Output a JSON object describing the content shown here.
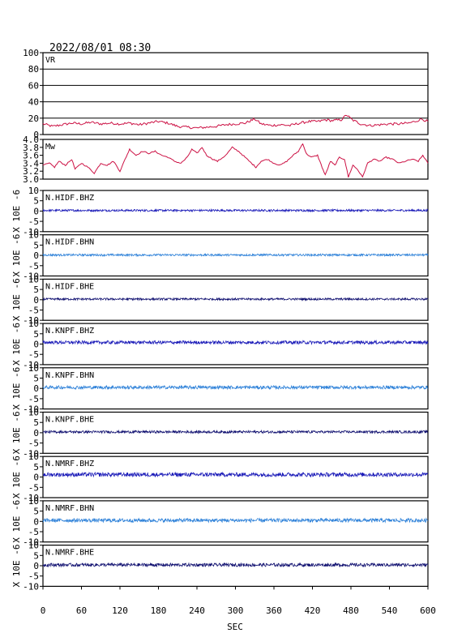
{
  "header": {
    "timestamp": "2022/08/01 08:30"
  },
  "colors": {
    "vr": "#cc1144",
    "mw": "#cc1144",
    "bhz": "#1a1ab8",
    "bhn": "#2a7fd8",
    "bhe": "#101070",
    "frame": "#000000"
  },
  "chart_data": {
    "type": "line",
    "xlabel": "SEC",
    "xlim": [
      0,
      600
    ],
    "xticks": [
      "0",
      "60",
      "120",
      "180",
      "240",
      "300",
      "360",
      "420",
      "480",
      "540",
      "600"
    ],
    "top_panels": [
      {
        "label": "VR",
        "ylim": [
          0,
          100
        ],
        "yticks": [
          "0",
          "20",
          "40",
          "60",
          "80",
          "100"
        ],
        "grid": true,
        "series": [
          {
            "x": 0,
            "y": 13
          },
          {
            "x": 15,
            "y": 10
          },
          {
            "x": 30,
            "y": 12
          },
          {
            "x": 45,
            "y": 14
          },
          {
            "x": 60,
            "y": 13
          },
          {
            "x": 75,
            "y": 15
          },
          {
            "x": 90,
            "y": 13
          },
          {
            "x": 105,
            "y": 14
          },
          {
            "x": 120,
            "y": 13
          },
          {
            "x": 135,
            "y": 14
          },
          {
            "x": 150,
            "y": 12
          },
          {
            "x": 165,
            "y": 14
          },
          {
            "x": 180,
            "y": 16
          },
          {
            "x": 195,
            "y": 14
          },
          {
            "x": 210,
            "y": 10
          },
          {
            "x": 225,
            "y": 9
          },
          {
            "x": 240,
            "y": 8
          },
          {
            "x": 255,
            "y": 9
          },
          {
            "x": 270,
            "y": 10
          },
          {
            "x": 285,
            "y": 12
          },
          {
            "x": 300,
            "y": 13
          },
          {
            "x": 315,
            "y": 14
          },
          {
            "x": 330,
            "y": 19
          },
          {
            "x": 340,
            "y": 13
          },
          {
            "x": 355,
            "y": 11
          },
          {
            "x": 370,
            "y": 12
          },
          {
            "x": 385,
            "y": 11
          },
          {
            "x": 400,
            "y": 14
          },
          {
            "x": 415,
            "y": 16
          },
          {
            "x": 430,
            "y": 16
          },
          {
            "x": 440,
            "y": 18
          },
          {
            "x": 450,
            "y": 17
          },
          {
            "x": 465,
            "y": 18
          },
          {
            "x": 473,
            "y": 24
          },
          {
            "x": 482,
            "y": 18
          },
          {
            "x": 495,
            "y": 13
          },
          {
            "x": 510,
            "y": 11
          },
          {
            "x": 525,
            "y": 12
          },
          {
            "x": 540,
            "y": 13
          },
          {
            "x": 555,
            "y": 13
          },
          {
            "x": 570,
            "y": 14
          },
          {
            "x": 580,
            "y": 16
          },
          {
            "x": 590,
            "y": 19
          },
          {
            "x": 600,
            "y": 16
          }
        ]
      },
      {
        "label": "Mw",
        "ylim": [
          3.0,
          4.0
        ],
        "yticks": [
          "3.0",
          "3.2",
          "3.4",
          "3.6",
          "3.8",
          "4.0"
        ],
        "grid": false,
        "series": [
          {
            "x": 0,
            "y": 3.35
          },
          {
            "x": 10,
            "y": 3.4
          },
          {
            "x": 18,
            "y": 3.3
          },
          {
            "x": 25,
            "y": 3.45
          },
          {
            "x": 35,
            "y": 3.35
          },
          {
            "x": 45,
            "y": 3.5
          },
          {
            "x": 50,
            "y": 3.25
          },
          {
            "x": 60,
            "y": 3.4
          },
          {
            "x": 70,
            "y": 3.3
          },
          {
            "x": 80,
            "y": 3.15
          },
          {
            "x": 90,
            "y": 3.4
          },
          {
            "x": 100,
            "y": 3.35
          },
          {
            "x": 110,
            "y": 3.45
          },
          {
            "x": 120,
            "y": 3.2
          },
          {
            "x": 128,
            "y": 3.5
          },
          {
            "x": 135,
            "y": 3.75
          },
          {
            "x": 145,
            "y": 3.6
          },
          {
            "x": 155,
            "y": 3.7
          },
          {
            "x": 165,
            "y": 3.65
          },
          {
            "x": 175,
            "y": 3.7
          },
          {
            "x": 185,
            "y": 3.6
          },
          {
            "x": 195,
            "y": 3.55
          },
          {
            "x": 205,
            "y": 3.45
          },
          {
            "x": 215,
            "y": 3.4
          },
          {
            "x": 225,
            "y": 3.55
          },
          {
            "x": 232,
            "y": 3.75
          },
          {
            "x": 240,
            "y": 3.65
          },
          {
            "x": 248,
            "y": 3.8
          },
          {
            "x": 255,
            "y": 3.6
          },
          {
            "x": 265,
            "y": 3.5
          },
          {
            "x": 272,
            "y": 3.45
          },
          {
            "x": 285,
            "y": 3.6
          },
          {
            "x": 295,
            "y": 3.8
          },
          {
            "x": 305,
            "y": 3.7
          },
          {
            "x": 315,
            "y": 3.55
          },
          {
            "x": 325,
            "y": 3.4
          },
          {
            "x": 332,
            "y": 3.3
          },
          {
            "x": 340,
            "y": 3.45
          },
          {
            "x": 350,
            "y": 3.5
          },
          {
            "x": 360,
            "y": 3.4
          },
          {
            "x": 370,
            "y": 3.35
          },
          {
            "x": 380,
            "y": 3.45
          },
          {
            "x": 390,
            "y": 3.6
          },
          {
            "x": 398,
            "y": 3.7
          },
          {
            "x": 405,
            "y": 3.9
          },
          {
            "x": 410,
            "y": 3.65
          },
          {
            "x": 418,
            "y": 3.55
          },
          {
            "x": 428,
            "y": 3.6
          },
          {
            "x": 435,
            "y": 3.3
          },
          {
            "x": 440,
            "y": 3.1
          },
          {
            "x": 448,
            "y": 3.45
          },
          {
            "x": 455,
            "y": 3.35
          },
          {
            "x": 462,
            "y": 3.55
          },
          {
            "x": 470,
            "y": 3.5
          },
          {
            "x": 476,
            "y": 3.05
          },
          {
            "x": 483,
            "y": 3.35
          },
          {
            "x": 490,
            "y": 3.25
          },
          {
            "x": 498,
            "y": 3.05
          },
          {
            "x": 506,
            "y": 3.4
          },
          {
            "x": 515,
            "y": 3.5
          },
          {
            "x": 525,
            "y": 3.45
          },
          {
            "x": 535,
            "y": 3.55
          },
          {
            "x": 545,
            "y": 3.5
          },
          {
            "x": 555,
            "y": 3.4
          },
          {
            "x": 565,
            "y": 3.45
          },
          {
            "x": 575,
            "y": 3.5
          },
          {
            "x": 585,
            "y": 3.45
          },
          {
            "x": 592,
            "y": 3.6
          },
          {
            "x": 600,
            "y": 3.4
          }
        ]
      }
    ],
    "waveform_panels": [
      {
        "label": "N.HIDF.BHZ",
        "color_key": "bhz",
        "ylabel": "X 10E -6",
        "ylim": [
          -10,
          10
        ],
        "yticks": [
          "10",
          "5",
          "0",
          "-5",
          "-10"
        ],
        "offset": 0.3,
        "amplitude": 0.5
      },
      {
        "label": "N.HIDF.BHN",
        "color_key": "bhn",
        "ylabel": "X 10E -6",
        "ylim": [
          -10,
          10
        ],
        "yticks": [
          "10",
          "5",
          "0",
          "-5",
          "-10"
        ],
        "offset": 0.2,
        "amplitude": 0.5
      },
      {
        "label": "N.HIDF.BHE",
        "color_key": "bhe",
        "ylabel": "X 10E -6",
        "ylim": [
          -10,
          10
        ],
        "yticks": [
          "10",
          "5",
          "0",
          "-5",
          "-10"
        ],
        "offset": 0.3,
        "amplitude": 0.5
      },
      {
        "label": "N.KNPF.BHZ",
        "color_key": "bhz",
        "ylabel": "X 10E -6",
        "ylim": [
          -10,
          10
        ],
        "yticks": [
          "10",
          "5",
          "0",
          "-5",
          "-10"
        ],
        "offset": 0.8,
        "amplitude": 0.8
      },
      {
        "label": "N.KNPF.BHN",
        "color_key": "bhn",
        "ylabel": "X 10E -6",
        "ylim": [
          -10,
          10
        ],
        "yticks": [
          "10",
          "5",
          "0",
          "-5",
          "-10"
        ],
        "offset": 0.5,
        "amplitude": 0.8
      },
      {
        "label": "N.KNPF.BHE",
        "color_key": "bhe",
        "ylabel": "X 10E -6",
        "ylim": [
          -10,
          10
        ],
        "yticks": [
          "10",
          "5",
          "0",
          "-5",
          "-10"
        ],
        "offset": 0.4,
        "amplitude": 0.6
      },
      {
        "label": "N.NMRF.BHZ",
        "color_key": "bhz",
        "ylabel": "X 10E -6",
        "ylim": [
          -10,
          10
        ],
        "yticks": [
          "10",
          "5",
          "0",
          "-5",
          "-10"
        ],
        "offset": 1.2,
        "amplitude": 1.0
      },
      {
        "label": "N.NMRF.BHN",
        "color_key": "bhn",
        "ylabel": "X 10E -6",
        "ylim": [
          -10,
          10
        ],
        "yticks": [
          "10",
          "5",
          "0",
          "-5",
          "-10"
        ],
        "offset": 0.5,
        "amplitude": 0.9
      },
      {
        "label": "N.NMRF.BHE",
        "color_key": "bhe",
        "ylabel": "X 10E -6",
        "ylim": [
          -10,
          10
        ],
        "yticks": [
          "10",
          "5",
          "0",
          "-5",
          "-10"
        ],
        "offset": 0.4,
        "amplitude": 0.8
      }
    ]
  }
}
